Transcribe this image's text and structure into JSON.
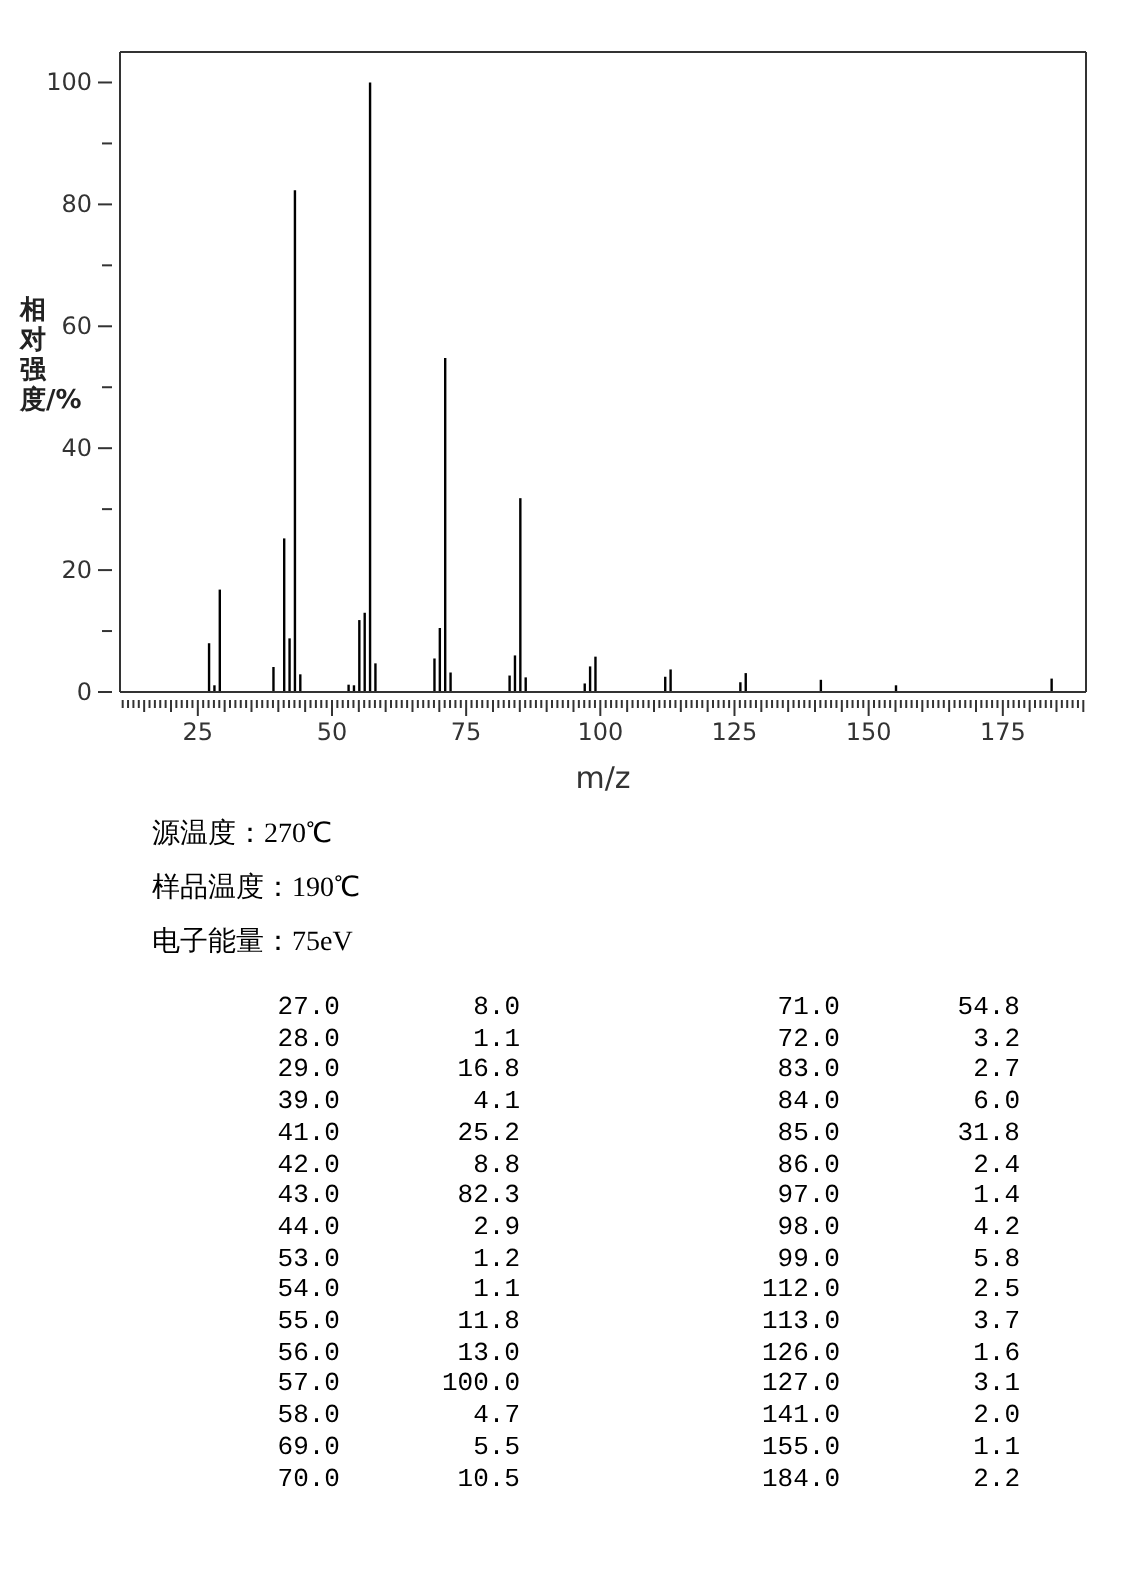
{
  "chart_data": [
    {
      "type": "bar",
      "xlabel": "m/z",
      "ylabel": "相对强度/%",
      "x": [
        27,
        28,
        29,
        39,
        41,
        42,
        43,
        44,
        53,
        54,
        55,
        56,
        57,
        58,
        69,
        70,
        71,
        72,
        83,
        84,
        85,
        86,
        97,
        98,
        99,
        112,
        113,
        126,
        127,
        141,
        155,
        184
      ],
      "values": [
        8.0,
        1.1,
        16.8,
        4.1,
        25.2,
        8.8,
        82.3,
        2.9,
        1.2,
        1.1,
        11.8,
        13.0,
        100.0,
        4.7,
        5.5,
        10.5,
        54.8,
        3.2,
        2.7,
        6.0,
        31.8,
        2.4,
        1.4,
        4.2,
        5.8,
        2.5,
        3.7,
        1.6,
        3.1,
        2.0,
        1.1,
        2.2
      ],
      "color": "#000000",
      "xlim": [
        10.5,
        190.5
      ],
      "xticks": [
        {
          "value": 11,
          "label": null
        },
        {
          "value": 12,
          "label": null
        },
        {
          "value": 13,
          "label": null
        },
        {
          "value": 14,
          "label": null
        },
        {
          "value": 15,
          "label": null
        },
        {
          "value": 16,
          "label": null
        },
        {
          "value": 17,
          "label": null
        },
        {
          "value": 18,
          "label": null
        },
        {
          "value": 19,
          "label": null
        },
        {
          "value": 20,
          "label": null
        },
        {
          "value": 21,
          "label": null
        },
        {
          "value": 22,
          "label": null
        },
        {
          "value": 23,
          "label": null
        },
        {
          "value": 24,
          "label": null
        },
        25,
        {
          "value": 26,
          "label": null
        },
        {
          "value": 27,
          "label": null
        },
        {
          "value": 28,
          "label": null
        },
        {
          "value": 29,
          "label": null
        },
        {
          "value": 30,
          "label": null
        },
        {
          "value": 31,
          "label": null
        },
        {
          "value": 32,
          "label": null
        },
        {
          "value": 33,
          "label": null
        },
        {
          "value": 34,
          "label": null
        },
        {
          "value": 35,
          "label": null
        },
        {
          "value": 36,
          "label": null
        },
        {
          "value": 37,
          "label": null
        },
        {
          "value": 38,
          "label": null
        },
        {
          "value": 39,
          "label": null
        },
        {
          "value": 40,
          "label": null
        },
        {
          "value": 41,
          "label": null
        },
        {
          "value": 42,
          "label": null
        },
        {
          "value": 43,
          "label": null
        },
        {
          "value": 44,
          "label": null
        },
        {
          "value": 45,
          "label": null
        },
        {
          "value": 46,
          "label": null
        },
        {
          "value": 47,
          "label": null
        },
        {
          "value": 48,
          "label": null
        },
        {
          "value": 49,
          "label": null
        },
        50,
        {
          "value": 51,
          "label": null
        },
        {
          "value": 52,
          "label": null
        },
        {
          "value": 53,
          "label": null
        },
        {
          "value": 54,
          "label": null
        },
        {
          "value": 55,
          "label": null
        },
        {
          "value": 56,
          "label": null
        },
        {
          "value": 57,
          "label": null
        },
        {
          "value": 58,
          "label": null
        },
        {
          "value": 59,
          "label": null
        },
        {
          "value": 60,
          "label": null
        },
        {
          "value": 61,
          "label": null
        },
        {
          "value": 62,
          "label": null
        },
        {
          "value": 63,
          "label": null
        },
        {
          "value": 64,
          "label": null
        },
        {
          "value": 65,
          "label": null
        },
        {
          "value": 66,
          "label": null
        },
        {
          "value": 67,
          "label": null
        },
        {
          "value": 68,
          "label": null
        },
        {
          "value": 69,
          "label": null
        },
        {
          "value": 70,
          "label": null
        },
        {
          "value": 71,
          "label": null
        },
        {
          "value": 72,
          "label": null
        },
        {
          "value": 73,
          "label": null
        },
        {
          "value": 74,
          "label": null
        },
        75,
        {
          "value": 76,
          "label": null
        },
        {
          "value": 77,
          "label": null
        },
        {
          "value": 78,
          "label": null
        },
        {
          "value": 79,
          "label": null
        },
        {
          "value": 80,
          "label": null
        },
        {
          "value": 81,
          "label": null
        },
        {
          "value": 82,
          "label": null
        },
        {
          "value": 83,
          "label": null
        },
        {
          "value": 84,
          "label": null
        },
        {
          "value": 85,
          "label": null
        },
        {
          "value": 86,
          "label": null
        },
        {
          "value": 87,
          "label": null
        },
        {
          "value": 88,
          "label": null
        },
        {
          "value": 89,
          "label": null
        },
        {
          "value": 90,
          "label": null
        },
        {
          "value": 91,
          "label": null
        },
        {
          "value": 92,
          "label": null
        },
        {
          "value": 93,
          "label": null
        },
        {
          "value": 94,
          "label": null
        },
        {
          "value": 95,
          "label": null
        },
        {
          "value": 96,
          "label": null
        },
        {
          "value": 97,
          "label": null
        },
        {
          "value": 98,
          "label": null
        },
        {
          "value": 99,
          "label": null
        },
        100,
        {
          "value": 101,
          "label": null
        },
        {
          "value": 102,
          "label": null
        },
        {
          "value": 103,
          "label": null
        },
        {
          "value": 104,
          "label": null
        },
        {
          "value": 105,
          "label": null
        },
        {
          "value": 106,
          "label": null
        },
        {
          "value": 107,
          "label": null
        },
        {
          "value": 108,
          "label": null
        },
        {
          "value": 109,
          "label": null
        },
        {
          "value": 110,
          "label": null
        },
        {
          "value": 111,
          "label": null
        },
        {
          "value": 112,
          "label": null
        },
        {
          "value": 113,
          "label": null
        },
        {
          "value": 114,
          "label": null
        },
        {
          "value": 115,
          "label": null
        },
        {
          "value": 116,
          "label": null
        },
        {
          "value": 117,
          "label": null
        },
        {
          "value": 118,
          "label": null
        },
        {
          "value": 119,
          "label": null
        },
        {
          "value": 120,
          "label": null
        },
        {
          "value": 121,
          "label": null
        },
        {
          "value": 122,
          "label": null
        },
        {
          "value": 123,
          "label": null
        },
        {
          "value": 124,
          "label": null
        },
        125,
        {
          "value": 126,
          "label": null
        },
        {
          "value": 127,
          "label": null
        },
        {
          "value": 128,
          "label": null
        },
        {
          "value": 129,
          "label": null
        },
        {
          "value": 130,
          "label": null
        },
        {
          "value": 131,
          "label": null
        },
        {
          "value": 132,
          "label": null
        },
        {
          "value": 133,
          "label": null
        },
        {
          "value": 134,
          "label": null
        },
        {
          "value": 135,
          "label": null
        },
        {
          "value": 136,
          "label": null
        },
        {
          "value": 137,
          "label": null
        },
        {
          "value": 138,
          "label": null
        },
        {
          "value": 139,
          "label": null
        },
        {
          "value": 140,
          "label": null
        },
        {
          "value": 141,
          "label": null
        },
        {
          "value": 142,
          "label": null
        },
        {
          "value": 143,
          "label": null
        },
        {
          "value": 144,
          "label": null
        },
        {
          "value": 145,
          "label": null
        },
        {
          "value": 146,
          "label": null
        },
        {
          "value": 147,
          "label": null
        },
        {
          "value": 148,
          "label": null
        },
        {
          "value": 149,
          "label": null
        },
        150,
        {
          "value": 151,
          "label": null
        },
        {
          "value": 152,
          "label": null
        },
        {
          "value": 153,
          "label": null
        },
        {
          "value": 154,
          "label": null
        },
        {
          "value": 155,
          "label": null
        },
        {
          "value": 156,
          "label": null
        },
        {
          "value": 157,
          "label": null
        },
        {
          "value": 158,
          "label": null
        },
        {
          "value": 159,
          "label": null
        },
        {
          "value": 160,
          "label": null
        },
        {
          "value": 161,
          "label": null
        },
        {
          "value": 162,
          "label": null
        },
        {
          "value": 163,
          "label": null
        },
        {
          "value": 164,
          "label": null
        },
        {
          "value": 165,
          "label": null
        },
        {
          "value": 166,
          "label": null
        },
        {
          "value": 167,
          "label": null
        },
        {
          "value": 168,
          "label": null
        },
        {
          "value": 169,
          "label": null
        },
        {
          "value": 170,
          "label": null
        },
        {
          "value": 171,
          "label": null
        },
        {
          "value": 172,
          "label": null
        },
        {
          "value": 173,
          "label": null
        },
        {
          "value": 174,
          "label": null
        },
        175,
        {
          "value": 176,
          "label": null
        },
        {
          "value": 177,
          "label": null
        },
        {
          "value": 178,
          "label": null
        },
        {
          "value": 179,
          "label": null
        },
        {
          "value": 180,
          "label": null
        },
        {
          "value": 181,
          "label": null
        },
        {
          "value": 182,
          "label": null
        },
        {
          "value": 183,
          "label": null
        },
        {
          "value": 184,
          "label": null
        },
        {
          "value": 185,
          "label": null
        },
        {
          "value": 186,
          "label": null
        },
        {
          "value": 187,
          "label": null
        },
        {
          "value": 188,
          "label": null
        },
        {
          "value": 189,
          "label": null
        },
        {
          "value": 190,
          "label": null
        }
      ],
      "ylim": [
        0,
        105
      ],
      "yticks": [
        0,
        {
          "value": 10,
          "label": null
        },
        20,
        {
          "value": 30,
          "label": null
        },
        40,
        {
          "value": 50,
          "label": null
        },
        60,
        {
          "value": 70,
          "label": null
        },
        80,
        {
          "value": 90,
          "label": null
        },
        100
      ],
      "annotations": [
        "源温度：270℃",
        "样品温度：190℃",
        "电子能量：75eV"
      ]
    },
    {
      "type": "other",
      "annotations": [
        "27.0",
        "8.0",
        "71.0",
        "54.8",
        "28.0",
        "1.1",
        "72.0",
        "3.2",
        "29.0",
        "16.8",
        "83.0",
        "2.7",
        "39.0",
        "4.1",
        "84.0",
        "6.0",
        "41.0",
        "25.2",
        "85.0",
        "31.8",
        "42.0",
        "8.8",
        "86.0",
        "2.4",
        "43.0",
        "82.3",
        "97.0",
        "1.4",
        "44.0",
        "2.9",
        "98.0",
        "4.2",
        "53.0",
        "1.2",
        "99.0",
        "5.8",
        "54.0",
        "1.1",
        "112.0",
        "2.5",
        "55.0",
        "11.8",
        "113.0",
        "3.7",
        "56.0",
        "13.0",
        "126.0",
        "1.6",
        "57.0",
        "100.0",
        "127.0",
        "3.1",
        "58.0",
        "4.7",
        "141.0",
        "2.0",
        "69.0",
        "5.5",
        "155.0",
        "1.1",
        "70.0",
        "10.5",
        "184.0",
        "2.2"
      ]
    }
  ]
}
